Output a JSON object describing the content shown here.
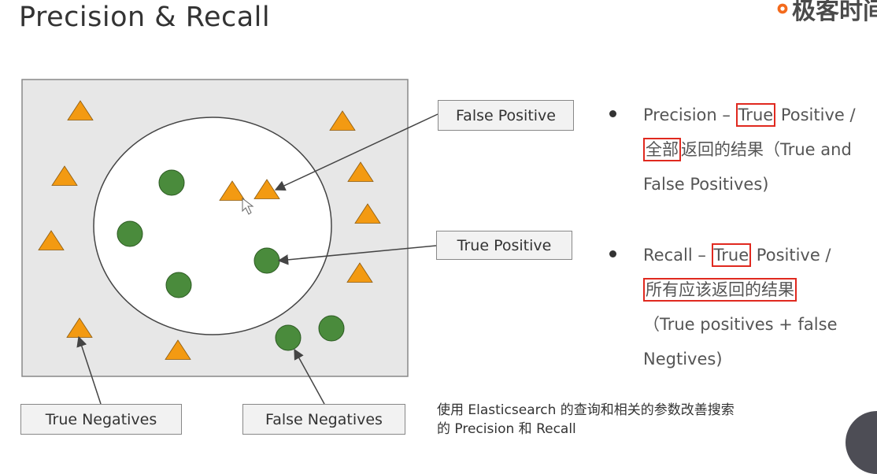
{
  "slide": {
    "title": "Precision & Recall",
    "logo_text": "极客时间"
  },
  "diagram": {
    "labels": {
      "false_positive": "False Positive",
      "true_positive": "True Positive",
      "true_negatives": "True Negatives",
      "false_negatives": "False Negatives"
    },
    "colors": {
      "background_box": "#e7e7e7",
      "circle_fill": "#ffffff",
      "triangle": "#f39a12",
      "dot": "#4a8b3c",
      "arrow": "#444444"
    }
  },
  "bullets": {
    "precision": {
      "prefix": "Precision – ",
      "true_hl": "True",
      "middle": " Positive / ",
      "all_hl": "全部",
      "suffix": "返回的结果（True and False Positives)"
    },
    "recall": {
      "prefix": "Recall – ",
      "true_hl": "True",
      "middle": " Positive /",
      "should_hl": "所有应该返回的结果",
      "suffix": "（True positives + false Negtives)"
    }
  },
  "caption": {
    "line1": "使用 Elasticsearch 的查询和相关的参数改善搜索",
    "line2": "的 Precision 和 Recall"
  }
}
